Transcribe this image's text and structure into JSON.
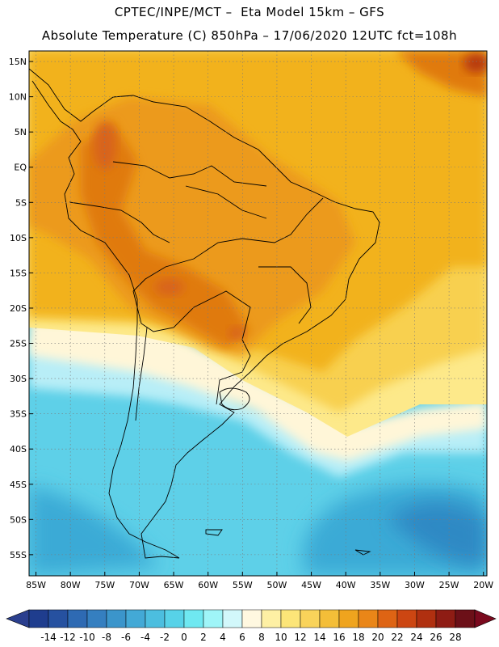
{
  "header": {
    "line1": "CPTEC/INPE/MCT –  Eta Model 15km – GFS",
    "line2": "Absolute Temperature (C) 850hPa – 17/06/2020 12UTC fct=108h"
  },
  "map": {
    "lon_range": [
      -86,
      -19.5
    ],
    "lat_range": [
      -58,
      16.5
    ],
    "lat_ticks": [
      {
        "value": 15,
        "label": "15N"
      },
      {
        "value": 10,
        "label": "10N"
      },
      {
        "value": 5,
        "label": "5N"
      },
      {
        "value": 0,
        "label": "EQ"
      },
      {
        "value": -5,
        "label": "5S"
      },
      {
        "value": -10,
        "label": "10S"
      },
      {
        "value": -15,
        "label": "15S"
      },
      {
        "value": -20,
        "label": "20S"
      },
      {
        "value": -25,
        "label": "25S"
      },
      {
        "value": -30,
        "label": "30S"
      },
      {
        "value": -35,
        "label": "35S"
      },
      {
        "value": -40,
        "label": "40S"
      },
      {
        "value": -45,
        "label": "45S"
      },
      {
        "value": -50,
        "label": "50S"
      },
      {
        "value": -55,
        "label": "55S"
      }
    ],
    "lon_ticks": [
      {
        "value": -85,
        "label": "85W"
      },
      {
        "value": -80,
        "label": "80W"
      },
      {
        "value": -75,
        "label": "75W"
      },
      {
        "value": -70,
        "label": "70W"
      },
      {
        "value": -65,
        "label": "65W"
      },
      {
        "value": -60,
        "label": "60W"
      },
      {
        "value": -55,
        "label": "55W"
      },
      {
        "value": -50,
        "label": "50W"
      },
      {
        "value": -45,
        "label": "45W"
      },
      {
        "value": -40,
        "label": "40W"
      },
      {
        "value": -35,
        "label": "35W"
      },
      {
        "value": -30,
        "label": "30W"
      },
      {
        "value": -25,
        "label": "25W"
      },
      {
        "value": -20,
        "label": "20W"
      }
    ],
    "colors": {
      "ocean_south": "#5ed0e8",
      "ocean_deep": "#3aaad6",
      "cold_band": "#b8eef7",
      "pale_band": "#fff6d8",
      "light_yellow": "#fde98a",
      "yellow": "#f8d050",
      "gold": "#f2b21a",
      "orange": "#ec9a1c",
      "dark_orange": "#e07a10",
      "warm_spot": "#d8641a",
      "hot_spot": "#b83a10",
      "border": "#000000"
    }
  },
  "colorbar": {
    "labels": [
      "-14",
      "-12",
      "-10",
      "-8",
      "-6",
      "-4",
      "-2",
      "0",
      "2",
      "4",
      "6",
      "8",
      "10",
      "12",
      "14",
      "16",
      "18",
      "20",
      "22",
      "24",
      "26",
      "28"
    ],
    "low_color": "#2b3f8e",
    "high_color": "#7a0a1e",
    "colors": [
      "#1f3d8e",
      "#2651a0",
      "#2e6ab3",
      "#357fc0",
      "#3b95cb",
      "#43a9d6",
      "#4cbedf",
      "#57d2e8",
      "#6fe8f1",
      "#9ff5f8",
      "#d2f8fb",
      "#fff8e0",
      "#fef0a4",
      "#fce578",
      "#f9d35a",
      "#f4be38",
      "#efa41e",
      "#ea8618",
      "#de6414",
      "#cc4612",
      "#b03010",
      "#8e1c14",
      "#6c1018"
    ]
  }
}
